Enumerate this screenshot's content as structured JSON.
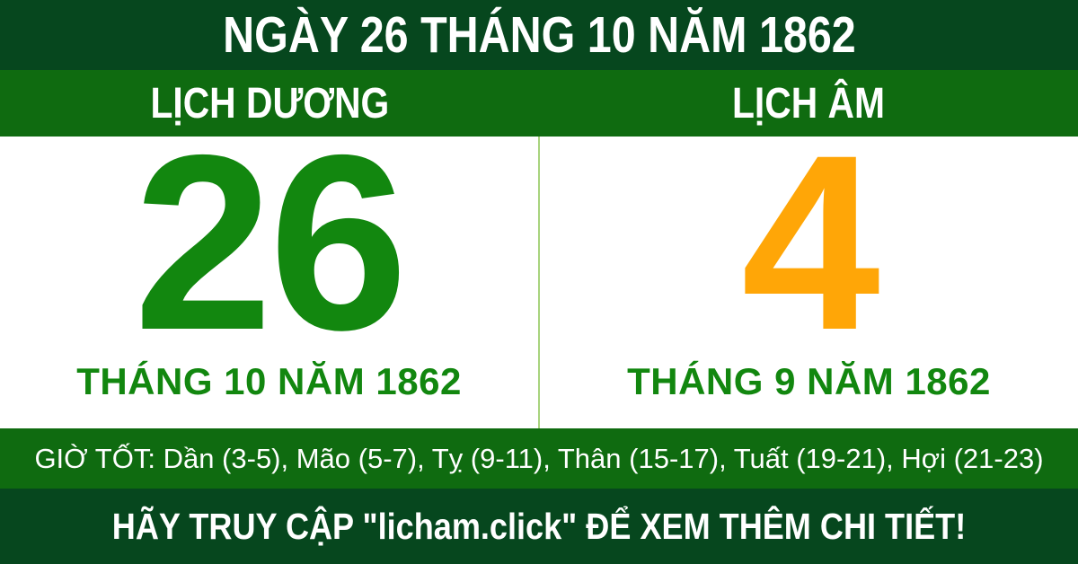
{
  "colors": {
    "dark_green": "#06471E",
    "bar_green": "#0F6B10",
    "day_green": "#12870F",
    "lunar_orange": "#FFA607",
    "divider_green": "#A8D47E",
    "text_white": "#FFFFFF"
  },
  "header": {
    "title": "NGÀY 26 THÁNG 10 NĂM 1862"
  },
  "calendar": {
    "solar": {
      "label": "LỊCH DƯƠNG",
      "day": "26",
      "month_year": "THÁNG 10 NĂM 1862"
    },
    "lunar": {
      "label": "LỊCH ÂM",
      "day": "4",
      "month_year": "THÁNG 9 NĂM 1862"
    }
  },
  "good_hours": {
    "text": "GIỜ TỐT: Dần (3-5), Mão (5-7), Tỵ (9-11), Thân (15-17), Tuất (19-21), Hợi (21-23)"
  },
  "footer": {
    "text": "HÃY TRUY CẬP \"licham.click\" ĐỂ XEM THÊM CHI TIẾT!"
  }
}
